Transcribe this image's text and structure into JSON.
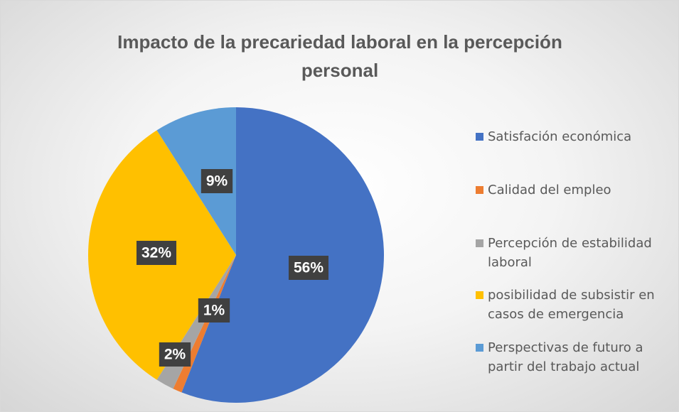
{
  "chart_data": {
    "type": "pie",
    "title": "Impacto de la precariedad laboral en la percepción personal",
    "categories": [
      "Satisfación económica",
      "Calidad del empleo",
      "Percepción de estabilidad laboral",
      "posibilidad de subsistir en casos de emergencia",
      "Perspectivas de futuro a partir del trabajo actual"
    ],
    "values": [
      56,
      1,
      2,
      32,
      9
    ],
    "value_labels": [
      "56%",
      "1%",
      "2%",
      "32%",
      "9%"
    ],
    "colors": [
      "#4472c4",
      "#ed7d31",
      "#a5a5a5",
      "#ffc000",
      "#5b9bd5"
    ],
    "legend": "right"
  }
}
